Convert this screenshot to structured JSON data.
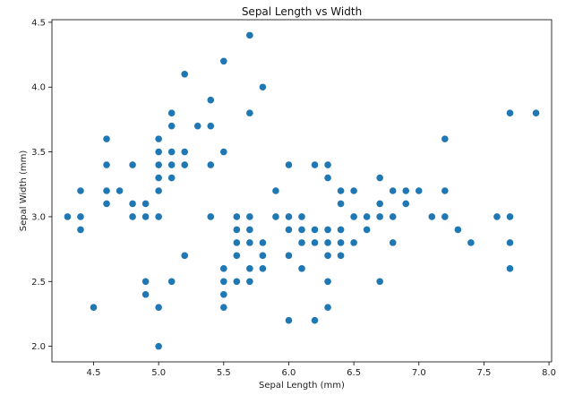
{
  "chart_data": {
    "type": "scatter",
    "title": "Sepal Length vs Width",
    "xlabel": "Sepal Length (mm)",
    "ylabel": "Sepal Width (mm)",
    "xlim": [
      4.18,
      8.02
    ],
    "ylim": [
      1.88,
      4.52
    ],
    "xticks": [
      4.5,
      5.0,
      5.5,
      6.0,
      6.5,
      7.0,
      7.5,
      8.0
    ],
    "xtick_labels": [
      "4.5",
      "5.0",
      "5.5",
      "6.0",
      "6.5",
      "7.0",
      "7.5",
      "8.0"
    ],
    "yticks": [
      2.0,
      2.5,
      3.0,
      3.5,
      4.0,
      4.5
    ],
    "ytick_labels": [
      "2.0",
      "2.5",
      "3.0",
      "3.5",
      "4.0",
      "4.5"
    ],
    "grid": false,
    "marker_color": "#1f77b4",
    "points": [
      [
        4.3,
        3.0
      ],
      [
        4.4,
        3.2
      ],
      [
        4.4,
        3.0
      ],
      [
        4.4,
        2.9
      ],
      [
        4.5,
        2.3
      ],
      [
        4.6,
        3.6
      ],
      [
        4.6,
        3.4
      ],
      [
        4.6,
        3.2
      ],
      [
        4.6,
        3.1
      ],
      [
        4.7,
        3.2
      ],
      [
        4.8,
        3.4
      ],
      [
        4.8,
        3.1
      ],
      [
        4.8,
        3.0
      ],
      [
        4.9,
        3.1
      ],
      [
        4.9,
        3.0
      ],
      [
        4.9,
        2.5
      ],
      [
        4.9,
        2.4
      ],
      [
        5.0,
        3.6
      ],
      [
        5.0,
        3.5
      ],
      [
        5.0,
        3.4
      ],
      [
        5.0,
        3.3
      ],
      [
        5.0,
        3.2
      ],
      [
        5.0,
        3.0
      ],
      [
        5.0,
        2.3
      ],
      [
        5.0,
        2.0
      ],
      [
        5.1,
        3.8
      ],
      [
        5.1,
        3.7
      ],
      [
        5.1,
        3.5
      ],
      [
        5.1,
        3.4
      ],
      [
        5.1,
        3.3
      ],
      [
        5.1,
        2.5
      ],
      [
        5.2,
        4.1
      ],
      [
        5.2,
        3.5
      ],
      [
        5.2,
        3.4
      ],
      [
        5.2,
        2.7
      ],
      [
        5.3,
        3.7
      ],
      [
        5.4,
        3.9
      ],
      [
        5.4,
        3.7
      ],
      [
        5.4,
        3.4
      ],
      [
        5.4,
        3.0
      ],
      [
        5.5,
        4.2
      ],
      [
        5.5,
        3.5
      ],
      [
        5.5,
        2.6
      ],
      [
        5.5,
        2.5
      ],
      [
        5.5,
        2.4
      ],
      [
        5.5,
        2.3
      ],
      [
        5.6,
        3.0
      ],
      [
        5.6,
        2.9
      ],
      [
        5.6,
        2.8
      ],
      [
        5.6,
        2.7
      ],
      [
        5.6,
        2.5
      ],
      [
        5.7,
        4.4
      ],
      [
        5.7,
        3.8
      ],
      [
        5.7,
        3.0
      ],
      [
        5.7,
        2.9
      ],
      [
        5.7,
        2.8
      ],
      [
        5.7,
        2.6
      ],
      [
        5.7,
        2.5
      ],
      [
        5.8,
        4.0
      ],
      [
        5.8,
        2.8
      ],
      [
        5.8,
        2.7
      ],
      [
        5.8,
        2.6
      ],
      [
        5.9,
        3.2
      ],
      [
        5.9,
        3.0
      ],
      [
        6.0,
        3.4
      ],
      [
        6.0,
        3.0
      ],
      [
        6.0,
        2.9
      ],
      [
        6.0,
        2.7
      ],
      [
        6.0,
        2.2
      ],
      [
        6.1,
        3.0
      ],
      [
        6.1,
        2.9
      ],
      [
        6.1,
        2.8
      ],
      [
        6.1,
        2.6
      ],
      [
        6.2,
        3.4
      ],
      [
        6.2,
        2.9
      ],
      [
        6.2,
        2.8
      ],
      [
        6.2,
        2.2
      ],
      [
        6.3,
        3.4
      ],
      [
        6.3,
        3.3
      ],
      [
        6.3,
        2.9
      ],
      [
        6.3,
        2.8
      ],
      [
        6.3,
        2.7
      ],
      [
        6.3,
        2.5
      ],
      [
        6.3,
        2.3
      ],
      [
        6.4,
        3.2
      ],
      [
        6.4,
        3.1
      ],
      [
        6.4,
        2.9
      ],
      [
        6.4,
        2.8
      ],
      [
        6.4,
        2.7
      ],
      [
        6.5,
        3.2
      ],
      [
        6.5,
        3.0
      ],
      [
        6.5,
        2.8
      ],
      [
        6.6,
        3.0
      ],
      [
        6.6,
        2.9
      ],
      [
        6.7,
        3.3
      ],
      [
        6.7,
        3.1
      ],
      [
        6.7,
        3.0
      ],
      [
        6.7,
        2.5
      ],
      [
        6.8,
        3.2
      ],
      [
        6.8,
        3.0
      ],
      [
        6.8,
        2.8
      ],
      [
        6.9,
        3.2
      ],
      [
        6.9,
        3.1
      ],
      [
        7.0,
        3.2
      ],
      [
        7.1,
        3.0
      ],
      [
        7.2,
        3.6
      ],
      [
        7.2,
        3.2
      ],
      [
        7.2,
        3.0
      ],
      [
        7.3,
        2.9
      ],
      [
        7.4,
        2.8
      ],
      [
        7.6,
        3.0
      ],
      [
        7.7,
        3.8
      ],
      [
        7.7,
        3.0
      ],
      [
        7.7,
        2.8
      ],
      [
        7.7,
        2.6
      ],
      [
        7.9,
        3.8
      ]
    ]
  }
}
